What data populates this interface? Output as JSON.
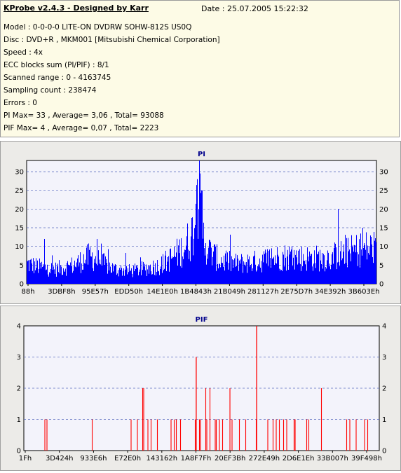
{
  "header": {
    "title": "KProbe v2.4.3 - Designed by Karr",
    "date": "Date : 25.07.2005 15:22:32",
    "lines": [
      "Model : 0-0-0-0 LITE-ON DVDRW SOHW-812S  US0Q",
      "Disc : DVD+R , MKM001 [Mitsubishi Chemical Corporation]",
      "Speed : 4x",
      "ECC blocks sum (PI/PIF) : 8/1",
      "Scanned range : 0 - 4163745",
      "Sampling count : 238474",
      "Errors : 0",
      "PI Max= 33 , Average= 3,06 , Total= 93088",
      "PIF Max= 4 , Average= 0,07 , Total= 2223"
    ]
  },
  "chart_data": [
    {
      "type": "area",
      "title": "PI",
      "color": "#0000ff",
      "ylim": [
        0,
        33
      ],
      "yticks": [
        0,
        5,
        10,
        15,
        20,
        25,
        30
      ],
      "xticks": [
        "88h",
        "3DBF8h",
        "95E57h",
        "EDD50h",
        "14E1E0h",
        "1B4843h",
        "21B049h",
        "281127h",
        "2E75D7h",
        "34E392h",
        "3B603Eh"
      ],
      "grid": true,
      "profile_x": [
        0,
        0.04,
        0.08,
        0.13,
        0.18,
        0.21,
        0.25,
        0.3,
        0.38,
        0.42,
        0.45,
        0.47,
        0.48,
        0.49,
        0.5,
        0.52,
        0.55,
        0.6,
        0.65,
        0.7,
        0.75,
        0.8,
        0.85,
        0.9,
        0.95,
        1.0
      ],
      "profile_y": [
        5.5,
        4.5,
        4,
        5,
        7.5,
        6,
        4,
        3.5,
        5,
        7.5,
        10,
        13,
        18,
        26,
        14,
        9,
        6.5,
        5.5,
        6,
        7,
        7.5,
        7,
        7,
        8,
        9.5,
        10
      ],
      "peaks": [
        [
          0.493,
          33
        ],
        [
          0.487,
          28
        ],
        [
          0.5,
          25
        ],
        [
          0.89,
          20
        ],
        [
          0.05,
          12
        ],
        [
          0.2,
          12
        ],
        [
          0.96,
          15
        ]
      ]
    },
    {
      "type": "bar",
      "title": "PIF",
      "color": "#ff0000",
      "ylim": [
        0,
        4
      ],
      "yticks": [
        0,
        1,
        2,
        3,
        4
      ],
      "xticks": [
        "1Fh",
        "3D424h",
        "933E6h",
        "E72E0h",
        "143162h",
        "1A8F7Fh",
        "20EF3Bh",
        "272E49h",
        "2D6E1Eh",
        "33B007h",
        "39F498h"
      ],
      "grid": true
    }
  ]
}
